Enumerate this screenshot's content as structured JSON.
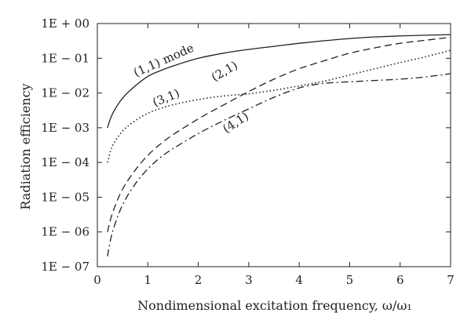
{
  "chart_data": {
    "type": "line",
    "title": "",
    "xlabel": "Nondimensional excitation frequency, ω/ω₁",
    "ylabel": "Radiation efficiency",
    "xlim": [
      0,
      7
    ],
    "ylim": [
      1e-07,
      1
    ],
    "yscale": "log",
    "grid": false,
    "x_ticks": [
      "0",
      "1",
      "2",
      "3",
      "4",
      "5",
      "6",
      "7"
    ],
    "y_ticks": [
      "1E + 00",
      "1E − 01",
      "1E − 02",
      "1E − 03",
      "1E − 04",
      "1E − 05",
      "1E − 06",
      "1E − 07"
    ],
    "series": [
      {
        "name": "(1,1) mode",
        "line_style": "solid",
        "x": [
          0.2,
          0.3,
          0.5,
          0.75,
          1.0,
          1.25,
          1.5,
          2.0,
          2.5,
          3.0,
          3.5,
          4.0,
          4.5,
          5.0,
          5.5,
          6.0,
          6.5,
          7.0
        ],
        "y": [
          0.001,
          0.0025,
          0.0071,
          0.016,
          0.03,
          0.044,
          0.06,
          0.1,
          0.14,
          0.18,
          0.22,
          0.27,
          0.32,
          0.37,
          0.41,
          0.44,
          0.46,
          0.48
        ]
      },
      {
        "name": "(2,1)",
        "line_style": "dashed",
        "x": [
          0.2,
          0.3,
          0.5,
          0.75,
          1.0,
          1.25,
          1.5,
          2.0,
          2.5,
          3.0,
          3.5,
          4.0,
          4.5,
          5.0,
          5.5,
          6.0,
          6.5,
          7.0
        ],
        "y": [
          1e-06,
          3.5e-06,
          1.7e-05,
          6e-05,
          0.00016,
          0.00034,
          0.00063,
          0.0018,
          0.0045,
          0.011,
          0.025,
          0.05,
          0.085,
          0.14,
          0.2,
          0.27,
          0.33,
          0.4
        ]
      },
      {
        "name": "(3,1)",
        "line_style": "dotted",
        "x": [
          0.2,
          0.3,
          0.5,
          0.75,
          1.0,
          1.25,
          1.5,
          2.0,
          2.5,
          3.0,
          3.5,
          4.0,
          4.5,
          5.0,
          5.5,
          6.0,
          6.5,
          7.0
        ],
        "y": [
          0.0001,
          0.0003,
          0.0008,
          0.0016,
          0.0026,
          0.0036,
          0.0046,
          0.0065,
          0.0082,
          0.0095,
          0.012,
          0.016,
          0.022,
          0.033,
          0.05,
          0.075,
          0.11,
          0.17
        ]
      },
      {
        "name": "(4,1)",
        "line_style": "dashdot",
        "x": [
          0.2,
          0.3,
          0.5,
          0.75,
          1.0,
          1.25,
          1.5,
          2.0,
          2.5,
          3.0,
          3.5,
          4.0,
          4.5,
          5.0,
          5.5,
          6.0,
          6.5,
          7.0
        ],
        "y": [
          2e-07,
          1e-06,
          6e-06,
          2.4e-05,
          6.5e-05,
          0.00014,
          0.00025,
          0.00068,
          0.0016,
          0.0035,
          0.0075,
          0.014,
          0.019,
          0.021,
          0.023,
          0.025,
          0.029,
          0.036
        ]
      }
    ]
  }
}
